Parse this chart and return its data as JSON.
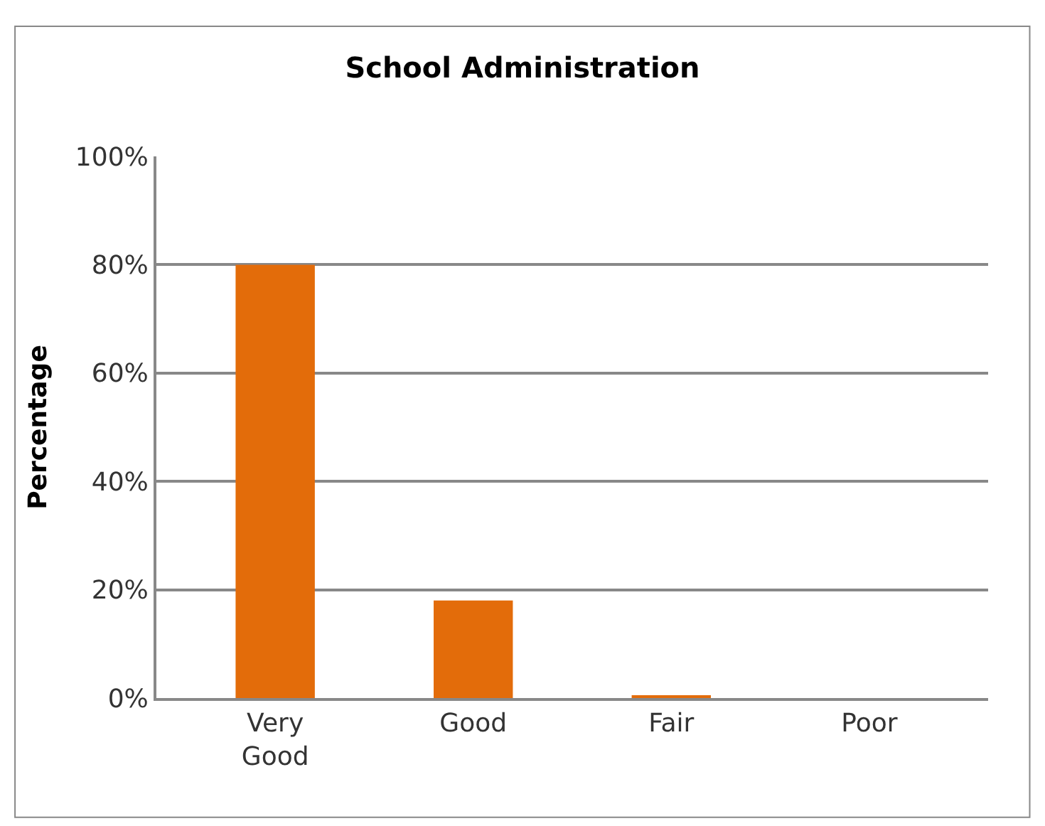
{
  "chart_data": {
    "type": "bar",
    "title": "School Administration",
    "ylabel": "Percentage",
    "categories": [
      "Very Good",
      "Good",
      "Fair",
      "Poor"
    ],
    "values": [
      80,
      18,
      0.5,
      0
    ],
    "color": "#e36c0a",
    "ylim": [
      0,
      100
    ],
    "yticks": [
      {
        "value": 0,
        "label": "0%"
      },
      {
        "value": 20,
        "label": "20%"
      },
      {
        "value": 40,
        "label": "40%"
      },
      {
        "value": 60,
        "label": "60%"
      },
      {
        "value": 80,
        "label": "80%"
      },
      {
        "value": 100,
        "label": "100%"
      }
    ],
    "grid": "y"
  }
}
